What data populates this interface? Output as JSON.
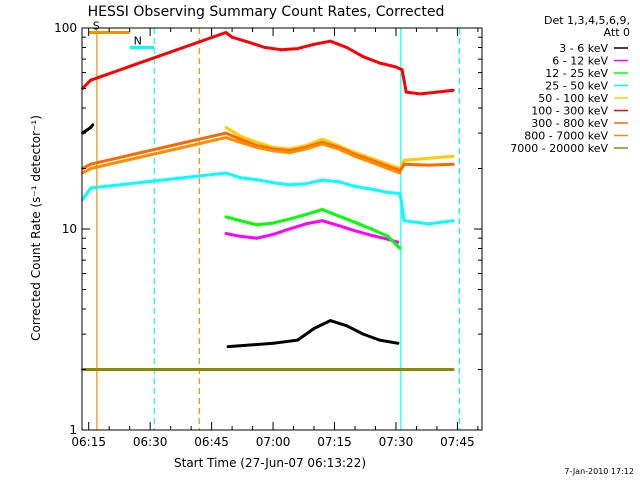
{
  "chart_data": {
    "type": "line",
    "title": "HESSI Observing Summary Count Rates, Corrected",
    "xlabel": "Start Time (27-Jun-07 06:13:22)",
    "ylabel": "Corrected Count Rate (s⁻¹ detector⁻¹)",
    "y_scale": "log",
    "ylim": [
      1,
      100
    ],
    "xlim": [
      "06:13:22",
      "07:51:00"
    ],
    "x_ticks": [
      "06:15",
      "06:30",
      "06:45",
      "07:00",
      "07:15",
      "07:30",
      "07:45"
    ],
    "y_ticks": [
      "1",
      "10",
      "100"
    ],
    "legend_title": [
      "Det 1,3,4,5,6,9,",
      "Att 0"
    ],
    "legend_placement": "right",
    "footer": "7-Jan-2010 17:12",
    "x_unit": "minute of day",
    "x_tick_values": [
      375,
      390,
      405,
      420,
      435,
      450,
      465
    ],
    "series": [
      {
        "name": "3 - 6 keV",
        "color": "#000000",
        "x": [
          409,
          420,
          426,
          430,
          434,
          438,
          442,
          446,
          450.5
        ],
        "y": [
          2.6,
          2.7,
          2.8,
          3.2,
          3.5,
          3.3,
          3.0,
          2.8,
          2.7
        ]
      },
      {
        "name": "6 - 12 keV",
        "color": "#ff00ff",
        "x": [
          408.5,
          412,
          416,
          420,
          424,
          428,
          432,
          436,
          440,
          444,
          448,
          450.5
        ],
        "y": [
          9.5,
          9.2,
          9.0,
          9.4,
          10.0,
          10.6,
          11.0,
          10.4,
          9.8,
          9.3,
          8.9,
          8.6
        ]
      },
      {
        "name": "12 - 25 keV",
        "color": "#00ff00",
        "x": [
          408.5,
          412,
          416,
          420,
          424,
          428,
          432,
          436,
          440,
          444,
          448,
          451
        ],
        "y": [
          11.5,
          11.0,
          10.5,
          10.7,
          11.2,
          11.8,
          12.5,
          11.6,
          10.8,
          10.0,
          9.2,
          8.0
        ]
      },
      {
        "name": "25 - 50 keV",
        "color": "#00ffff",
        "x": [
          373.5,
          375.5,
          408.5,
          412,
          416,
          420,
          424,
          428,
          432,
          436,
          440,
          444,
          448,
          451,
          452,
          458,
          464
        ],
        "y": [
          14.0,
          16.0,
          19.0,
          18.0,
          17.6,
          17.0,
          16.6,
          16.8,
          17.5,
          17.2,
          16.3,
          15.8,
          15.2,
          15.0,
          11.0,
          10.6,
          11.0
        ]
      },
      {
        "name": "50 - 100 keV",
        "color": "#ffcc00",
        "x": [
          408.5,
          412,
          416,
          420,
          424,
          428,
          432,
          436,
          440,
          444,
          448,
          451,
          452,
          458,
          464
        ],
        "y": [
          32.0,
          29.0,
          27.0,
          25.5,
          25.0,
          26.0,
          28.0,
          26.0,
          24.0,
          22.5,
          21.0,
          20.0,
          22.0,
          22.5,
          23.0
        ]
      },
      {
        "name": "100 - 300 keV",
        "color": "#ff0000",
        "x": [
          373.5,
          375.5,
          408.5,
          410,
          414,
          418,
          422,
          426,
          430,
          434,
          438,
          442,
          446,
          450,
          451.5,
          452.5,
          456,
          460,
          464
        ],
        "y": [
          50.0,
          55.0,
          95.0,
          90.0,
          85.0,
          80.0,
          78.0,
          79.0,
          83.0,
          86.0,
          80.0,
          72.0,
          67.0,
          64.0,
          62.0,
          48.0,
          47.0,
          48.0,
          49.0
        ]
      },
      {
        "name": "300 - 800 keV",
        "color": "#ff6600",
        "x": [
          373.5,
          375.5,
          408.5,
          412,
          416,
          420,
          424,
          428,
          432,
          436,
          440,
          444,
          448,
          451,
          452,
          458,
          464
        ],
        "y": [
          20.0,
          21.0,
          30.0,
          28.0,
          26.0,
          25.0,
          24.5,
          25.5,
          27.0,
          25.5,
          23.5,
          22.0,
          20.5,
          19.5,
          21.0,
          20.8,
          21.0
        ]
      },
      {
        "name": "800 - 7000 keV",
        "color": "#ff8c00",
        "x": [
          373.5,
          375.5,
          408.5,
          412,
          416,
          420,
          424,
          428,
          432,
          436,
          440,
          444,
          448,
          451
        ],
        "y": [
          19.0,
          20.0,
          28.5,
          27.0,
          25.5,
          24.5,
          24.0,
          25.0,
          26.5,
          25.0,
          23.0,
          21.5,
          20.0,
          19.0
        ]
      },
      {
        "name": "7000 - 20000 keV",
        "color": "#8b8b00",
        "x": [
          373.5,
          375.5,
          408.5,
          420,
          430,
          440,
          450.5,
          452,
          458,
          464
        ],
        "y": [
          2.0,
          2.0,
          2.0,
          2.0,
          2.0,
          2.0,
          2.0,
          2.0,
          2.0,
          2.0
        ]
      },
      {
        "name": "Att 0 marker",
        "color": "#000000",
        "x": [
          373.5,
          375.5,
          376.0
        ],
        "y": [
          30.0,
          32.0,
          33.0
        ]
      }
    ],
    "annotations": [
      {
        "label": "S",
        "color": "#ff8c00",
        "x_start": 375.0,
        "x_end": 385.0,
        "level": 95
      },
      {
        "label": "N",
        "color": "#00ffff",
        "x_start": 385.0,
        "x_end": 391.0,
        "level": 80
      }
    ],
    "region_lines": [
      {
        "x": 377.0,
        "color": "#ff8c00",
        "style": "solid"
      },
      {
        "x": 391.0,
        "color": "#00ffff",
        "style": "dashed"
      },
      {
        "x": 402.0,
        "color": "#ff8c00",
        "style": "dashed"
      },
      {
        "x": 451.2,
        "color": "#00ffff",
        "style": "solid"
      },
      {
        "x": 465.5,
        "color": "#00ffff",
        "style": "dashed"
      }
    ]
  }
}
